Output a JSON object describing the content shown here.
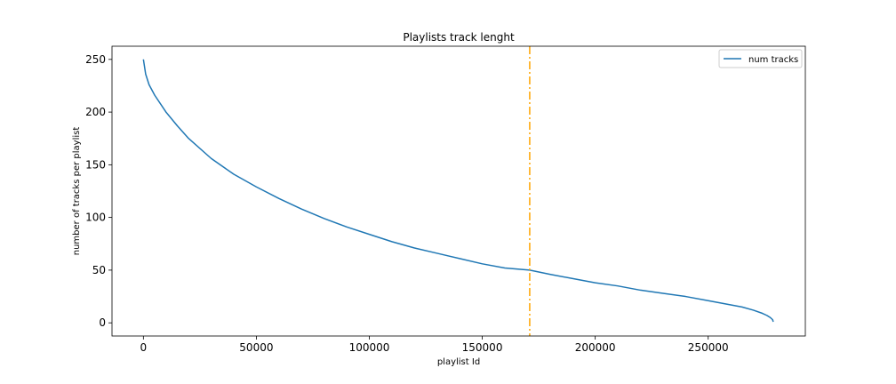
{
  "chart_data": {
    "type": "line",
    "title": "Playlists track lenght",
    "xlabel": "playlist Id",
    "ylabel": "number of tracks per playlist",
    "xlim": [
      -13900,
      293000
    ],
    "ylim": [
      -12.5,
      262.5
    ],
    "xticks": [
      0,
      50000,
      100000,
      150000,
      200000,
      250000
    ],
    "xtick_labels": [
      "0",
      "50000",
      "100000",
      "150000",
      "200000",
      "250000"
    ],
    "yticks": [
      0,
      50,
      100,
      150,
      200,
      250
    ],
    "ytick_labels": [
      "0",
      "50",
      "100",
      "150",
      "200",
      "250"
    ],
    "grid": false,
    "legend_position": "top-right",
    "series": [
      {
        "name": "num tracks",
        "color": "#1f77b4",
        "x": [
          0,
          1000,
          2500,
          5000,
          10000,
          15000,
          20000,
          30000,
          40000,
          50000,
          60000,
          70000,
          80000,
          90000,
          100000,
          110000,
          120000,
          130000,
          140000,
          150000,
          160000,
          171000,
          180000,
          190000,
          200000,
          210000,
          220000,
          230000,
          240000,
          250000,
          260000,
          265000,
          270000,
          274000,
          276000,
          277500,
          278500,
          278800
        ],
        "y": [
          250,
          236,
          226,
          216,
          200,
          187,
          175,
          156,
          141,
          129,
          118,
          108,
          99,
          91,
          84,
          77,
          71,
          66,
          61,
          56,
          52,
          50,
          46,
          42,
          38,
          35,
          31,
          28,
          25,
          21,
          17,
          15,
          12,
          9,
          7,
          5,
          3,
          1
        ]
      }
    ],
    "reference_lines": [
      {
        "orientation": "vertical",
        "x": 171000,
        "color": "#ffa500",
        "style": "dash-dot"
      }
    ]
  }
}
